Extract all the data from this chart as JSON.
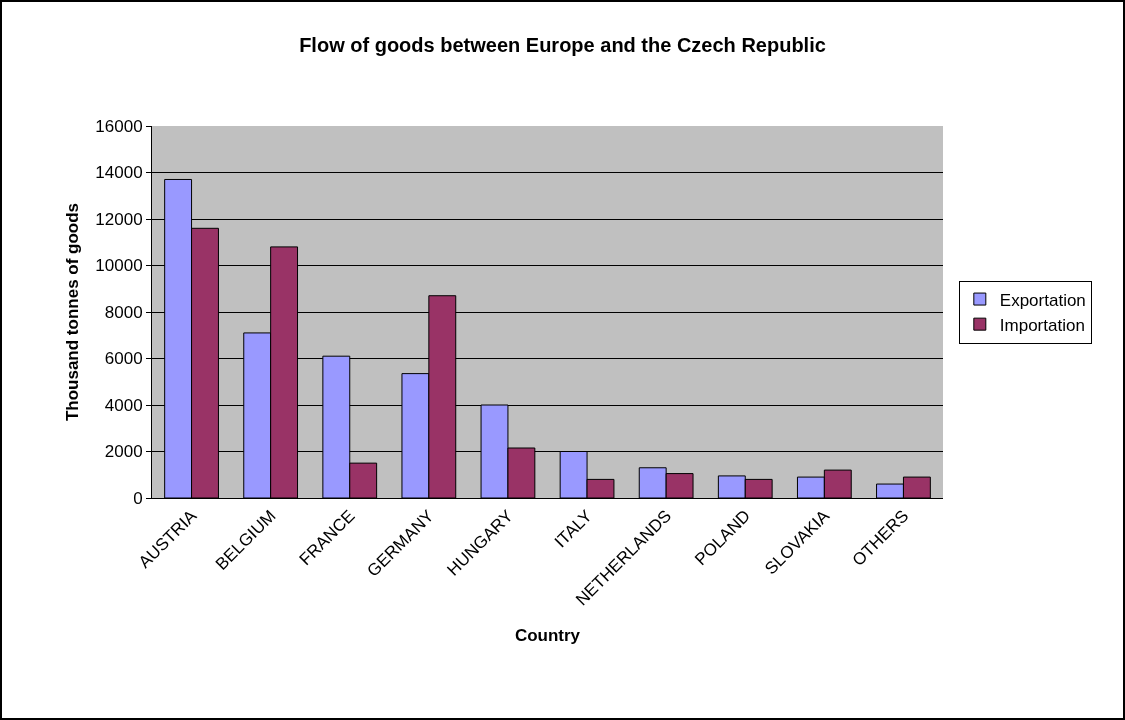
{
  "chart_data": {
    "type": "bar",
    "title": "Flow of goods between Europe and the Czech Republic",
    "xlabel": "Country",
    "ylabel": "Thousand tonnes of goods",
    "categories": [
      "AUSTRIA",
      "BELGIUM",
      "FRANCE",
      "GERMANY",
      "HUNGARY",
      "ITALY",
      "NETHERLANDS",
      "POLAND",
      "SLOVAKIA",
      "OTHERS"
    ],
    "series": [
      {
        "name": "Exportation",
        "color": "#9999ff",
        "values": [
          13700,
          7100,
          6100,
          5350,
          4000,
          2000,
          1300,
          950,
          900,
          600
        ]
      },
      {
        "name": "Importation",
        "color": "#993366",
        "values": [
          11600,
          10800,
          1500,
          8700,
          2150,
          800,
          1050,
          800,
          1200,
          900
        ]
      }
    ],
    "ylim": [
      0,
      16000
    ],
    "yticks": [
      0,
      2000,
      4000,
      6000,
      8000,
      10000,
      12000,
      14000,
      16000
    ],
    "grid": "y",
    "legend": "right"
  }
}
